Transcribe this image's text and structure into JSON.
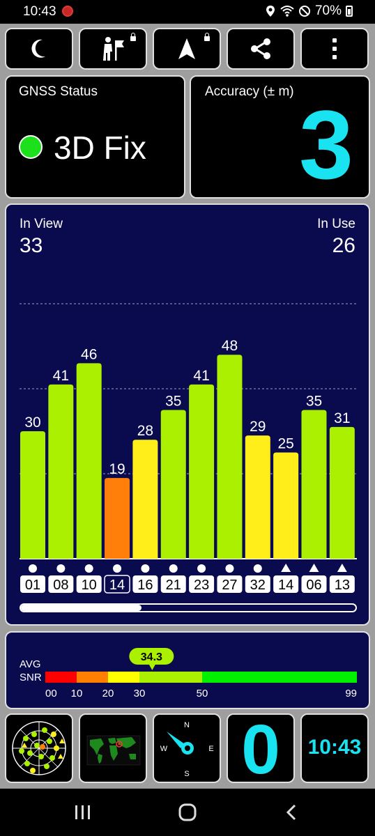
{
  "status_bar": {
    "time": "10:43",
    "battery": "70%",
    "icons": [
      "app-notification-icon",
      "location-icon",
      "wifi-icon",
      "dnd-icon",
      "battery-icon"
    ]
  },
  "toolbar": {
    "buttons": [
      {
        "name": "night-mode-button",
        "icon": "moon-icon",
        "locked": false
      },
      {
        "name": "activity-button",
        "icon": "hiker-flag-icon",
        "locked": true
      },
      {
        "name": "navigation-button",
        "icon": "navigation-arrow-icon",
        "locked": true
      },
      {
        "name": "share-button",
        "icon": "share-icon",
        "locked": false
      },
      {
        "name": "more-menu-button",
        "icon": "more-vert-icon",
        "locked": false
      }
    ]
  },
  "gnss_status": {
    "title": "GNSS Status",
    "fix": "3D Fix",
    "fix_color": "#1de01d"
  },
  "accuracy": {
    "title": "Accuracy (± m)",
    "value": "3",
    "color": "#19e3f0"
  },
  "satellites": {
    "in_view_label": "In View",
    "in_view": "33",
    "in_use_label": "In Use",
    "in_use": "26",
    "scroll_fraction": 0.36
  },
  "chart_data": {
    "type": "bar",
    "ylim": [
      0,
      80
    ],
    "gridlines": [
      20,
      40,
      60
    ],
    "categories": [
      "01",
      "08",
      "10",
      "14",
      "16",
      "21",
      "23",
      "27",
      "32",
      "14",
      "06",
      "13"
    ],
    "values": [
      30,
      41,
      46,
      19,
      28,
      35,
      41,
      48,
      29,
      25,
      35,
      31
    ],
    "markers": [
      "circle",
      "circle",
      "circle",
      "circle",
      "circle",
      "circle",
      "circle",
      "circle",
      "circle",
      "triangle",
      "triangle",
      "triangle"
    ],
    "highlighted": [
      false,
      false,
      false,
      true,
      false,
      false,
      false,
      false,
      false,
      false,
      false,
      false
    ],
    "colors": {
      "high": "#aaf000",
      "mid": "#ffee1a",
      "low": "#ff7f0a"
    }
  },
  "snr": {
    "label_avg": "AVG",
    "label_snr": "SNR",
    "avg": "34.3",
    "avg_value": 34.3,
    "scale_max": 99,
    "ticks": [
      {
        "label": "00",
        "value": 0
      },
      {
        "label": "10",
        "value": 10
      },
      {
        "label": "20",
        "value": 20
      },
      {
        "label": "30",
        "value": 30
      },
      {
        "label": "50",
        "value": 50
      },
      {
        "label": "99",
        "value": 99
      }
    ],
    "segments": [
      {
        "from": 0,
        "to": 10,
        "color": "#ff0000"
      },
      {
        "from": 10,
        "to": 20,
        "color": "#ff8000"
      },
      {
        "from": 20,
        "to": 30,
        "color": "#ffff00"
      },
      {
        "from": 30,
        "to": 50,
        "color": "#aaf000"
      },
      {
        "from": 50,
        "to": 99,
        "color": "#00f000"
      }
    ]
  },
  "bottom_row": {
    "compass": {
      "n": "N",
      "e": "E",
      "s": "S",
      "w": "W"
    },
    "zero_value": "0",
    "clock": "10:43"
  },
  "nav_bar": {
    "icons": [
      "recent-apps-icon",
      "home-icon",
      "back-icon"
    ]
  }
}
